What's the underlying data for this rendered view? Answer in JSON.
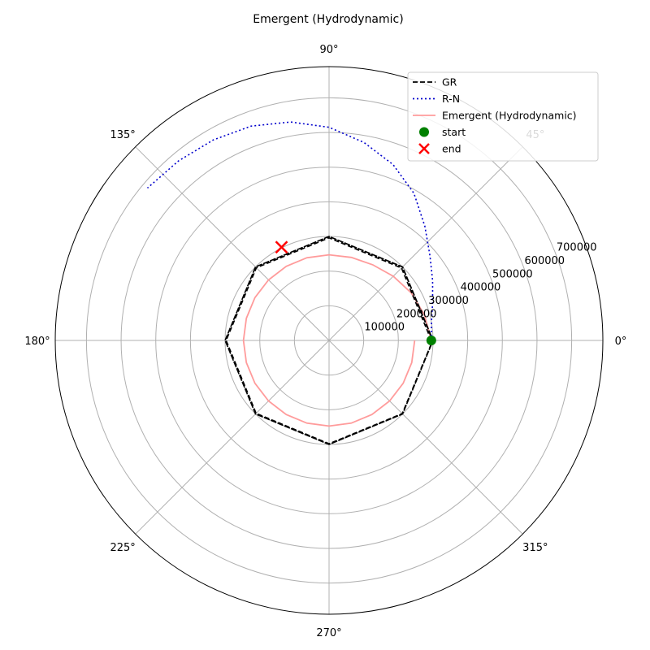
{
  "chart_data": {
    "type": "line",
    "projection": "polar",
    "title": "Emergent (Hydrodynamic)",
    "theta_ticks_deg": [
      0,
      45,
      90,
      135,
      180,
      225,
      270,
      315
    ],
    "theta_tick_labels": [
      "0°",
      "45°",
      "90°",
      "135°",
      "180°",
      "225°",
      "270°",
      "315°"
    ],
    "r_ticks": [
      100000,
      200000,
      300000,
      400000,
      500000,
      600000,
      700000
    ],
    "r_tick_labels": [
      "100000",
      "200000",
      "300000",
      "400000",
      "500000",
      "600000",
      "700000"
    ],
    "rlim": [
      0,
      790000
    ],
    "r_label_angle_deg": 22.5,
    "grid": true,
    "legend_position": "top-right",
    "series": [
      {
        "name": "GR",
        "color": "#000000",
        "linestyle": "dashed",
        "points": [
          [
            0,
            295000
          ],
          [
            45,
            295500
          ],
          [
            90,
            296000
          ],
          [
            135,
            296500
          ],
          [
            180,
            297000
          ],
          [
            225,
            297500
          ],
          [
            270,
            298000
          ],
          [
            315,
            298500
          ],
          [
            360,
            299000
          ],
          [
            405,
            299500
          ],
          [
            450,
            300000
          ],
          [
            495,
            300000
          ],
          [
            540,
            300000
          ],
          [
            585,
            300000
          ],
          [
            630,
            300000
          ],
          [
            675,
            300000
          ],
          [
            720,
            300000
          ],
          [
            765,
            300000
          ],
          [
            810,
            300000
          ],
          [
            855,
            300000
          ],
          [
            900,
            300000
          ],
          [
            945,
            300000
          ],
          [
            990,
            300000
          ],
          [
            1035,
            300000
          ],
          [
            1080,
            300000
          ],
          [
            1125,
            300000
          ],
          [
            1170,
            300000
          ],
          [
            1215,
            300000
          ],
          [
            1260,
            300000
          ],
          [
            1305,
            300000
          ],
          [
            1350,
            300000
          ],
          [
            1395,
            300000
          ],
          [
            1440,
            300000
          ],
          [
            1485,
            300000
          ],
          [
            1530,
            300000
          ],
          [
            1575,
            300000
          ],
          [
            1620,
            300000
          ],
          [
            1665,
            300000
          ],
          [
            1710,
            300000
          ],
          [
            1755,
            300000
          ],
          [
            1800,
            300000
          ]
        ]
      },
      {
        "name": "R-N",
        "color": "#0000cc",
        "linestyle": "dotted",
        "points": [
          [
            0,
            295000
          ],
          [
            10,
            300000
          ],
          [
            20,
            318000
          ],
          [
            30,
            345000
          ],
          [
            40,
            380000
          ],
          [
            50,
            430000
          ],
          [
            60,
            490000
          ],
          [
            70,
            540000
          ],
          [
            80,
            580000
          ],
          [
            90,
            615000
          ],
          [
            100,
            640000
          ],
          [
            110,
            658000
          ],
          [
            120,
            668000
          ],
          [
            130,
            676000
          ],
          [
            140,
            684000
          ]
        ]
      },
      {
        "name": "Emergent (Hydrodynamic)",
        "color": "#ff9b9b",
        "linestyle": "solid",
        "points": [
          [
            0,
            295000
          ],
          [
            15,
            285000
          ],
          [
            30,
            274000
          ],
          [
            45,
            262000
          ],
          [
            60,
            252000
          ],
          [
            75,
            248000
          ],
          [
            90,
            247000
          ],
          [
            105,
            247000
          ],
          [
            120,
            247000
          ],
          [
            135,
            247000
          ],
          [
            150,
            247000
          ],
          [
            165,
            247000
          ],
          [
            180,
            247000
          ],
          [
            195,
            247000
          ],
          [
            210,
            247000
          ],
          [
            225,
            247000
          ],
          [
            240,
            247000
          ],
          [
            255,
            247000
          ],
          [
            270,
            247000
          ],
          [
            285,
            247000
          ],
          [
            300,
            247000
          ],
          [
            315,
            247000
          ],
          [
            330,
            247000
          ],
          [
            345,
            247000
          ],
          [
            360,
            247000
          ]
        ]
      }
    ],
    "markers": [
      {
        "name": "start",
        "color": "#008000",
        "shape": "circle",
        "theta": 0,
        "r": 295000
      },
      {
        "name": "end",
        "color": "#ff0000",
        "shape": "x",
        "theta": 117,
        "r": 302000
      }
    ]
  }
}
